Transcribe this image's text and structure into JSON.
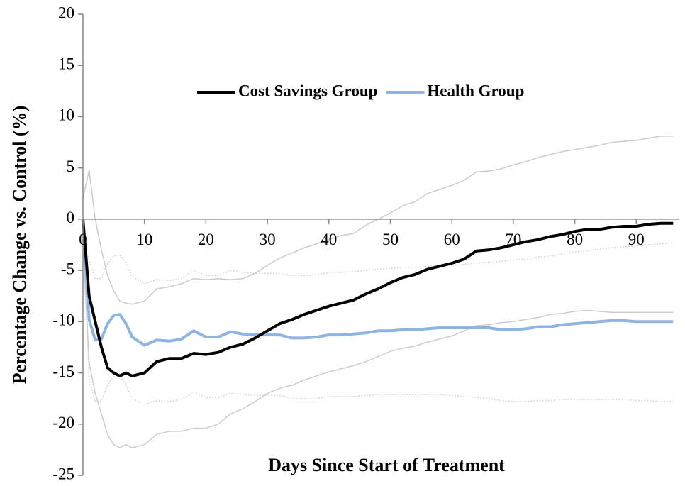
{
  "chart_data": {
    "type": "line",
    "x_label": "Days Since Start of Treatment",
    "y_label": "Percentage Change vs. Control (%)",
    "x": [
      0,
      1,
      2,
      3,
      4,
      5,
      6,
      7,
      8,
      10,
      12,
      14,
      16,
      18,
      20,
      22,
      24,
      26,
      28,
      30,
      32,
      34,
      36,
      38,
      40,
      42,
      44,
      46,
      48,
      50,
      52,
      54,
      56,
      58,
      60,
      62,
      64,
      66,
      68,
      70,
      72,
      74,
      76,
      78,
      80,
      82,
      84,
      86,
      88,
      90,
      92,
      94,
      96
    ],
    "xlim": [
      0,
      97
    ],
    "xticks": [
      0,
      10,
      20,
      30,
      40,
      50,
      60,
      70,
      80,
      90
    ],
    "ylim": [
      -25,
      20
    ],
    "yticks": [
      20,
      15,
      10,
      5,
      0,
      -5,
      -10,
      -15,
      -20,
      -25
    ],
    "series": [
      {
        "name": "Cost Savings Group",
        "color": "#000000",
        "width": 4,
        "style": "solid",
        "values": [
          0,
          -7.5,
          -10,
          -12.5,
          -14.5,
          -15,
          -15.3,
          -15,
          -15.3,
          -15,
          -13.9,
          -13.6,
          -13.6,
          -13.1,
          -13.2,
          -13,
          -12.5,
          -12.2,
          -11.6,
          -10.9,
          -10.2,
          -9.8,
          -9.3,
          -8.9,
          -8.5,
          -8.2,
          -7.9,
          -7.3,
          -6.8,
          -6.2,
          -5.7,
          -5.4,
          -4.9,
          -4.6,
          -4.3,
          -3.9,
          -3.1,
          -3,
          -2.8,
          -2.5,
          -2.2,
          -2,
          -1.7,
          -1.5,
          -1.2,
          -1,
          -1,
          -0.8,
          -0.7,
          -0.7,
          -0.5,
          -0.4,
          -0.4
        ]
      },
      {
        "name": "Health Group",
        "color": "#8eb4e3",
        "width": 4,
        "style": "solid",
        "values": [
          0,
          -9.8,
          -11.8,
          -11.7,
          -10.2,
          -9.4,
          -9.3,
          -10.2,
          -11.5,
          -12.3,
          -11.8,
          -11.9,
          -11.7,
          -10.9,
          -11.5,
          -11.5,
          -11,
          -11.2,
          -11.3,
          -11.3,
          -11.3,
          -11.6,
          -11.6,
          -11.5,
          -11.3,
          -11.3,
          -11.2,
          -11.1,
          -10.9,
          -10.9,
          -10.8,
          -10.8,
          -10.7,
          -10.6,
          -10.6,
          -10.6,
          -10.6,
          -10.6,
          -10.8,
          -10.8,
          -10.7,
          -10.5,
          -10.5,
          -10.3,
          -10.2,
          -10.1,
          -10,
          -9.9,
          -9.9,
          -10,
          -10,
          -10,
          -10
        ]
      },
      {
        "color": "#cccccc",
        "width": 1.5,
        "style": "solid",
        "values": [
          2,
          4.8,
          0,
          -3,
          -5.5,
          -7,
          -8,
          -8.2,
          -8.3,
          -8,
          -6.8,
          -6.6,
          -6.3,
          -5.8,
          -5.9,
          -5.8,
          -5.9,
          -5.8,
          -5.3,
          -4.5,
          -3.8,
          -3.3,
          -2.8,
          -2.4,
          -2,
          -1.6,
          -1.4,
          -0.6,
          0,
          0.6,
          1.3,
          1.7,
          2.5,
          2.9,
          3.3,
          3.8,
          4.6,
          4.7,
          4.9,
          5.3,
          5.6,
          6,
          6.3,
          6.6,
          6.8,
          7,
          7.2,
          7.5,
          7.6,
          7.7,
          7.9,
          8.1,
          8.1
        ]
      },
      {
        "color": "#cccccc",
        "width": 1.5,
        "style": "solid",
        "values": [
          -2,
          -14,
          -17,
          -19,
          -21,
          -22,
          -22.3,
          -22,
          -22.3,
          -22,
          -21,
          -20.7,
          -20.7,
          -20.4,
          -20.4,
          -20,
          -19,
          -18.5,
          -17.8,
          -17,
          -16.5,
          -16.2,
          -15.7,
          -15.3,
          -14.9,
          -14.6,
          -14.3,
          -13.9,
          -13.4,
          -12.9,
          -12.6,
          -12.4,
          -12,
          -11.7,
          -11.4,
          -10.9,
          -10.4,
          -10.3,
          -10.1,
          -10,
          -9.8,
          -9.6,
          -9.3,
          -9.2,
          -9,
          -8.9,
          -9,
          -9.1,
          -9.1,
          -9.1,
          -9.1,
          -9.1,
          -9.1
        ]
      },
      {
        "color": "#cccccc",
        "width": 1.5,
        "style": "dotted",
        "values": [
          -2,
          -4,
          -5.8,
          -5.8,
          -4.3,
          -3.6,
          -3.5,
          -4.3,
          -5.6,
          -6.3,
          -5.9,
          -6,
          -5.8,
          -5,
          -5.5,
          -5.5,
          -5,
          -5.2,
          -5.3,
          -5.3,
          -5.3,
          -5.5,
          -5.5,
          -5.4,
          -5.2,
          -5.2,
          -5.1,
          -5,
          -4.9,
          -4.8,
          -4.7,
          -4.7,
          -4.6,
          -4.5,
          -4.5,
          -4.4,
          -4.3,
          -4.2,
          -4.1,
          -4,
          -3.9,
          -3.7,
          -3.6,
          -3.4,
          -3.2,
          -3.1,
          -2.9,
          -2.8,
          -2.7,
          -2.6,
          -2.5,
          -2.4,
          -2.3
        ]
      },
      {
        "color": "#cccccc",
        "width": 1.5,
        "style": "dotted",
        "values": [
          -2,
          -15.6,
          -17.8,
          -17.7,
          -16.2,
          -15.3,
          -15.2,
          -16.2,
          -17.5,
          -18.1,
          -17.7,
          -17.8,
          -17.6,
          -16.9,
          -17.4,
          -17.4,
          -17,
          -17.1,
          -17.2,
          -17.2,
          -17.2,
          -17.5,
          -17.5,
          -17.5,
          -17.3,
          -17.3,
          -17.3,
          -17.2,
          -17.1,
          -17.1,
          -17.1,
          -17.1,
          -17.1,
          -17.1,
          -17.2,
          -17.3,
          -17.4,
          -17.5,
          -17.7,
          -17.8,
          -17.8,
          -17.7,
          -17.7,
          -17.6,
          -17.6,
          -17.6,
          -17.6,
          -17.6,
          -17.6,
          -17.7,
          -17.7,
          -17.8,
          -17.8
        ]
      }
    ]
  }
}
